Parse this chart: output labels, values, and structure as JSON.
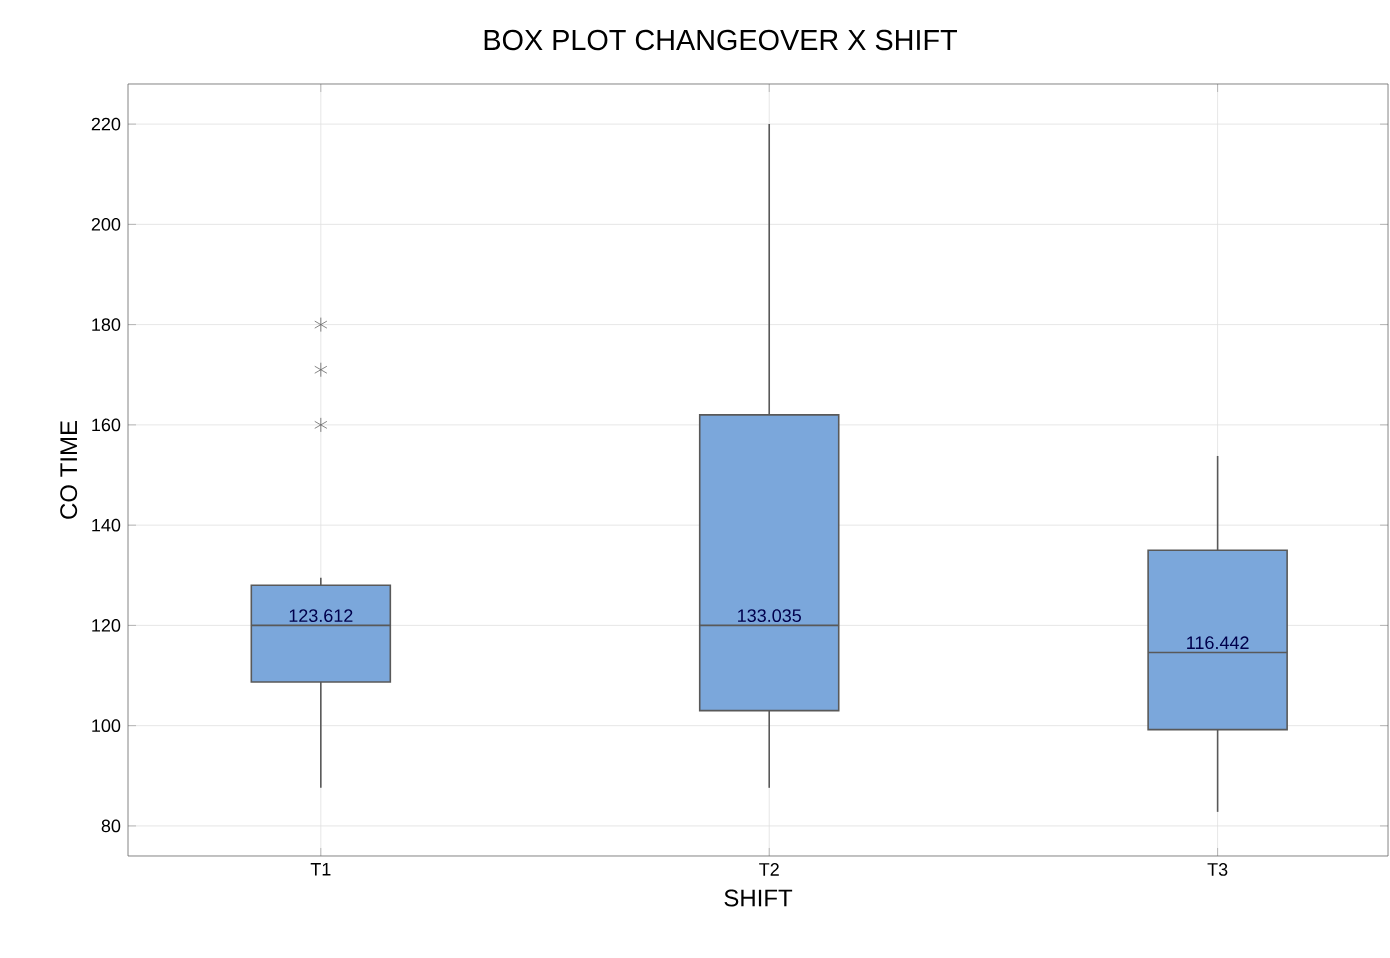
{
  "chart_data": {
    "type": "box",
    "title": "BOX PLOT  CHANGEOVER X SHIFT",
    "xlabel": "SHIFT",
    "ylabel": "CO TIME",
    "categories": [
      "T1",
      "T2",
      "T3"
    ],
    "boxes": [
      {
        "low": 87.6,
        "q1": 108.7,
        "median": 120,
        "q3": 128,
        "high": 129.5,
        "outliers": [
          160,
          171,
          180
        ]
      },
      {
        "low": 87.6,
        "q1": 103,
        "median": 120,
        "q3": 162,
        "high": 220
      },
      {
        "low": 82.8,
        "q1": 99.2,
        "median": 114.6,
        "q3": 135,
        "high": 153.8
      }
    ],
    "color": "#7ba7db",
    "ylim": [
      74,
      228
    ],
    "yticks": [
      80,
      100,
      120,
      140,
      160,
      180,
      200,
      220
    ],
    "grid": true,
    "annotations": [
      "123.612",
      "133.035",
      "116.442"
    ]
  }
}
